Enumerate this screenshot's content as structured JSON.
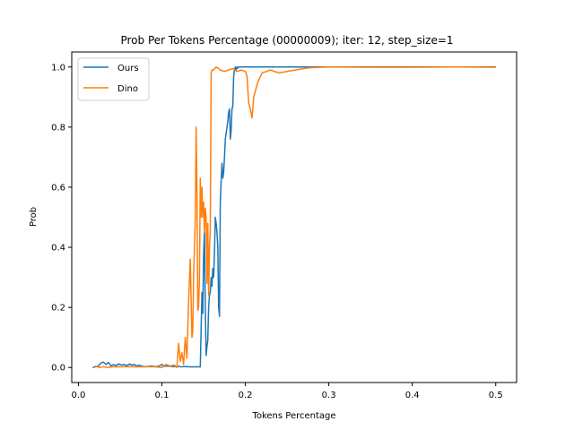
{
  "chart_data": {
    "type": "line",
    "title": "Prob Per Tokens Percentage (00000009); iter: 12, step_size=1",
    "xlabel": "Tokens Percentage",
    "ylabel": "Prob",
    "xlim": [
      -0.008,
      0.525
    ],
    "ylim": [
      -0.05,
      1.05
    ],
    "xticks": [
      0.0,
      0.1,
      0.2,
      0.3,
      0.4,
      0.5
    ],
    "xtick_labels": [
      "0.0",
      "0.1",
      "0.2",
      "0.3",
      "0.4",
      "0.5"
    ],
    "yticks": [
      0.0,
      0.2,
      0.4,
      0.6,
      0.8,
      1.0
    ],
    "ytick_labels": [
      "0.0",
      "0.2",
      "0.4",
      "0.6",
      "0.8",
      "1.0"
    ],
    "grid": false,
    "legend_position": "top-left",
    "series": [
      {
        "name": "Ours",
        "color": "#1f77b4",
        "x": [
          0.017,
          0.02,
          0.024,
          0.027,
          0.03,
          0.033,
          0.036,
          0.039,
          0.042,
          0.045,
          0.048,
          0.052,
          0.055,
          0.058,
          0.061,
          0.064,
          0.067,
          0.07,
          0.073,
          0.076,
          0.079,
          0.083,
          0.086,
          0.09,
          0.093,
          0.096,
          0.1,
          0.103,
          0.106,
          0.11,
          0.113,
          0.116,
          0.12,
          0.123,
          0.126,
          0.13,
          0.133,
          0.136,
          0.14,
          0.143,
          0.146,
          0.148,
          0.149,
          0.15,
          0.151,
          0.152,
          0.153,
          0.154,
          0.155,
          0.156,
          0.157,
          0.158,
          0.159,
          0.16,
          0.161,
          0.162,
          0.163,
          0.164,
          0.165,
          0.166,
          0.167,
          0.168,
          0.169,
          0.17,
          0.171,
          0.172,
          0.173,
          0.174,
          0.175,
          0.176,
          0.177,
          0.178,
          0.179,
          0.18,
          0.181,
          0.182,
          0.183,
          0.184,
          0.185,
          0.186,
          0.187,
          0.188,
          0.189,
          0.19,
          0.191,
          0.192,
          0.195,
          0.2,
          0.21,
          0.22,
          0.25,
          0.3,
          0.35,
          0.4,
          0.45,
          0.5
        ],
        "y": [
          0.0,
          0.002,
          0.005,
          0.015,
          0.018,
          0.01,
          0.017,
          0.005,
          0.01,
          0.006,
          0.012,
          0.008,
          0.01,
          0.006,
          0.012,
          0.008,
          0.01,
          0.005,
          0.008,
          0.004,
          0.003,
          0.003,
          0.005,
          0.004,
          0.003,
          0.004,
          0.01,
          0.004,
          0.005,
          0.004,
          0.003,
          0.003,
          0.004,
          0.002,
          0.003,
          0.003,
          0.002,
          0.002,
          0.002,
          0.002,
          0.002,
          0.25,
          0.18,
          0.38,
          0.45,
          0.2,
          0.04,
          0.07,
          0.09,
          0.2,
          0.24,
          0.25,
          0.3,
          0.27,
          0.33,
          0.3,
          0.38,
          0.5,
          0.48,
          0.45,
          0.4,
          0.2,
          0.17,
          0.55,
          0.62,
          0.68,
          0.63,
          0.65,
          0.7,
          0.76,
          0.78,
          0.8,
          0.82,
          0.85,
          0.86,
          0.76,
          0.79,
          0.86,
          0.87,
          0.97,
          0.99,
          1.0,
          0.99,
          1.0,
          0.996,
          1.0,
          1.0,
          1.0,
          1.0,
          1.0,
          1.0,
          1.0,
          1.0,
          1.0,
          1.0,
          1.0
        ]
      },
      {
        "name": "Dino",
        "color": "#ff7f0e",
        "x": [
          0.02,
          0.025,
          0.03,
          0.035,
          0.04,
          0.05,
          0.06,
          0.07,
          0.08,
          0.09,
          0.1,
          0.105,
          0.11,
          0.115,
          0.118,
          0.12,
          0.122,
          0.124,
          0.126,
          0.128,
          0.13,
          0.132,
          0.134,
          0.136,
          0.137,
          0.138,
          0.14,
          0.141,
          0.142,
          0.143,
          0.144,
          0.145,
          0.146,
          0.147,
          0.148,
          0.149,
          0.15,
          0.151,
          0.152,
          0.153,
          0.154,
          0.155,
          0.156,
          0.157,
          0.158,
          0.159,
          0.16,
          0.162,
          0.165,
          0.17,
          0.175,
          0.18,
          0.185,
          0.19,
          0.195,
          0.2,
          0.202,
          0.204,
          0.206,
          0.208,
          0.21,
          0.215,
          0.22,
          0.23,
          0.24,
          0.25,
          0.26,
          0.27,
          0.28,
          0.3,
          0.35,
          0.4,
          0.45,
          0.5
        ],
        "y": [
          0.005,
          0.0,
          0.003,
          0.0,
          0.002,
          0.002,
          0.003,
          0.002,
          0.002,
          0.003,
          0.0,
          0.01,
          0.005,
          0.008,
          0.0,
          0.08,
          0.02,
          0.05,
          0.01,
          0.1,
          0.03,
          0.22,
          0.36,
          0.1,
          0.12,
          0.3,
          0.5,
          0.8,
          0.6,
          0.19,
          0.2,
          0.3,
          0.63,
          0.5,
          0.6,
          0.5,
          0.55,
          0.45,
          0.53,
          0.5,
          0.28,
          0.48,
          0.24,
          0.4,
          0.46,
          0.98,
          0.99,
          0.99,
          1.0,
          0.99,
          0.985,
          0.99,
          0.995,
          0.985,
          0.99,
          0.985,
          0.97,
          0.88,
          0.86,
          0.83,
          0.9,
          0.95,
          0.98,
          0.99,
          0.98,
          0.985,
          0.99,
          0.995,
          0.998,
          1.0,
          0.999,
          0.999,
          1.0,
          0.999
        ]
      }
    ]
  }
}
